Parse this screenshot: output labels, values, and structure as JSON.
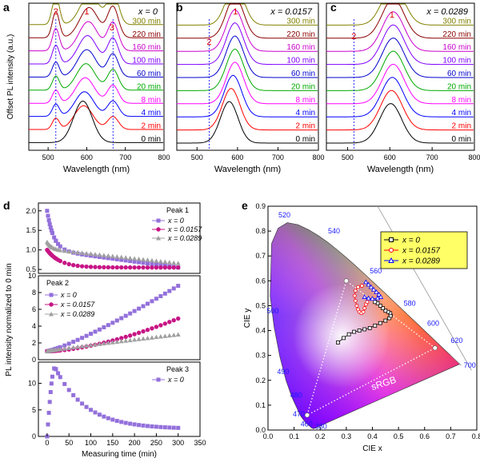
{
  "chart_data": [
    {
      "type": "line",
      "panel": "a",
      "title": "x = 0",
      "xlabel": "Wavelength (nm)",
      "ylabel": "Offset PL intensity (a.u.)",
      "xlim": [
        450,
        800
      ],
      "xticks": [
        500,
        600,
        700,
        800
      ],
      "time_labels": [
        "300 min",
        "220 min",
        "160 min",
        "100 min",
        "60 min",
        "20 min",
        "8 min",
        "4 min",
        "2 min",
        "0 min"
      ],
      "colors": [
        "#808000",
        "#8b0000",
        "#cc00cc",
        "#8000ff",
        "#0000cc",
        "#00aa00",
        "#ff00ff",
        "#0000ff",
        "#ff0000",
        "#000000"
      ],
      "peak_labels": [
        {
          "text": "2",
          "wavelength": 520
        },
        {
          "text": "1",
          "wavelength": 600
        },
        {
          "text": "3",
          "wavelength": 665
        }
      ],
      "dashed_lines": [
        520,
        668
      ]
    },
    {
      "type": "line",
      "panel": "b",
      "title": "x = 0.0157",
      "xlabel": "Wavelength (nm)",
      "xlim": [
        450,
        800
      ],
      "xticks": [
        500,
        600,
        700,
        800
      ],
      "time_labels": [
        "300 min",
        "220 min",
        "160 min",
        "100 min",
        "60 min",
        "20 min",
        "8 min",
        "4 min",
        "2 min",
        "0 min"
      ],
      "peak_labels": [
        {
          "text": "2",
          "wavelength": 530
        },
        {
          "text": "1",
          "wavelength": 595
        }
      ],
      "dashed_lines": [
        530
      ]
    },
    {
      "type": "line",
      "panel": "c",
      "title": "x = 0.0289",
      "xlabel": "Wavelength (nm)",
      "xlim": [
        450,
        800
      ],
      "xticks": [
        500,
        600,
        700,
        800
      ],
      "time_labels": [
        "300 min",
        "220 min",
        "160 min",
        "100 min",
        "60 min",
        "20 min",
        "8 min",
        "4 min",
        "2 min",
        "0 min"
      ],
      "peak_labels": [
        {
          "text": "2",
          "wavelength": 515
        },
        {
          "text": "1",
          "wavelength": 605
        }
      ],
      "dashed_lines": [
        515
      ]
    },
    {
      "type": "scatter",
      "panel": "d",
      "xlabel": "Measuring time (min)",
      "ylabel": "PL intensity normalized to 0 min",
      "xlim": [
        -20,
        350
      ],
      "xticks": [
        0,
        50,
        100,
        150,
        200,
        250,
        300,
        350
      ],
      "subplots": [
        {
          "name": "Peak 1",
          "ylim": [
            0.4,
            2.2
          ],
          "yticks": [
            0.5,
            1.0,
            1.5,
            2.0
          ],
          "series": [
            {
              "name": "x = 0",
              "a": 1.0,
              "b": 1.0,
              "tau": 15,
              "c": 0.0015,
              "color": "#9370db",
              "marker": "square"
            },
            {
              "name": "x = 0.0157",
              "a": 0.45,
              "b": 0.55,
              "tau": 30,
              "c": 0,
              "color": "#c71585",
              "marker": "circle"
            },
            {
              "name": "x = 0.0289",
              "a": 0.18,
              "b": 1.02,
              "tau": 10,
              "c": 0.0012,
              "color": "#a0a0a0",
              "marker": "triangle"
            }
          ]
        },
        {
          "name": "Peak 2",
          "ylim": [
            0,
            10
          ],
          "yticks": [
            0,
            2,
            4,
            6,
            8,
            10
          ],
          "series": [
            {
              "name": "x = 0",
              "start": 1.0,
              "end": 8.8,
              "curv": 1.2,
              "color": "#9370db",
              "marker": "square"
            },
            {
              "name": "x = 0.0157",
              "start": 1.0,
              "end": 4.9,
              "curv": 1.6,
              "color": "#c71585",
              "marker": "circle"
            },
            {
              "name": "x = 0.0289",
              "start": 1.0,
              "end": 3.0,
              "curv": 0.9,
              "color": "#a0a0a0",
              "marker": "triangle"
            }
          ]
        },
        {
          "name": "Peak 3",
          "ylim": [
            0,
            14
          ],
          "yticks": [
            0,
            5,
            10
          ],
          "series": [
            {
              "name": "x = 0",
              "peak_time": 18,
              "peak_value": 13,
              "end": 1.4,
              "color": "#9370db",
              "marker": "square"
            }
          ]
        }
      ]
    },
    {
      "type": "scatter",
      "panel": "e",
      "xlabel": "CIE x",
      "ylabel": "CIE y",
      "xlim": [
        0.0,
        0.8
      ],
      "ylim": [
        0.0,
        0.9
      ],
      "xticks": [
        0.0,
        0.1,
        0.2,
        0.3,
        0.4,
        0.5,
        0.6,
        0.7,
        0.8
      ],
      "yticks": [
        0.0,
        0.1,
        0.2,
        0.3,
        0.4,
        0.5,
        0.6,
        0.7,
        0.8,
        0.9
      ],
      "wavelength_labels": [
        "380",
        "460",
        "470",
        "480",
        "490",
        "500",
        "520",
        "540",
        "560",
        "580",
        "600",
        "620",
        "700"
      ],
      "triangle_label": "sRGB",
      "srgb": [
        [
          0.64,
          0.33
        ],
        [
          0.3,
          0.6
        ],
        [
          0.15,
          0.06
        ]
      ],
      "series": [
        {
          "name": "x = 0",
          "color": "#000000",
          "marker": "square",
          "points": [
            [
              0.268,
              0.352
            ],
            [
              0.29,
              0.37
            ],
            [
              0.31,
              0.385
            ],
            [
              0.33,
              0.395
            ],
            [
              0.35,
              0.4
            ],
            [
              0.37,
              0.405
            ],
            [
              0.39,
              0.41
            ],
            [
              0.41,
              0.42
            ],
            [
              0.43,
              0.43
            ],
            [
              0.45,
              0.44
            ],
            [
              0.465,
              0.45
            ],
            [
              0.47,
              0.46
            ],
            [
              0.468,
              0.47
            ],
            [
              0.46,
              0.475
            ],
            [
              0.45,
              0.48
            ],
            [
              0.44,
              0.49
            ],
            [
              0.43,
              0.5
            ],
            [
              0.42,
              0.51
            ],
            [
              0.41,
              0.515
            ]
          ]
        },
        {
          "name": "x = 0.0157",
          "color": "#ff0000",
          "marker": "circle",
          "points": [
            [
              0.36,
              0.58
            ],
            [
              0.345,
              0.575
            ],
            [
              0.335,
              0.56
            ],
            [
              0.332,
              0.54
            ],
            [
              0.335,
              0.52
            ],
            [
              0.34,
              0.5
            ],
            [
              0.345,
              0.485
            ],
            [
              0.35,
              0.475
            ],
            [
              0.358,
              0.47
            ],
            [
              0.365,
              0.475
            ],
            [
              0.37,
              0.49
            ],
            [
              0.375,
              0.505
            ],
            [
              0.38,
              0.515
            ]
          ]
        },
        {
          "name": "x = 0.0289",
          "color": "#0000ff",
          "marker": "triangle",
          "points": [
            [
              0.375,
              0.595
            ],
            [
              0.385,
              0.585
            ],
            [
              0.395,
              0.575
            ],
            [
              0.405,
              0.565
            ],
            [
              0.415,
              0.555
            ],
            [
              0.425,
              0.545
            ],
            [
              0.432,
              0.535
            ],
            [
              0.42,
              0.53
            ],
            [
              0.4,
              0.528
            ],
            [
              0.385,
              0.53
            ],
            [
              0.37,
              0.535
            ]
          ]
        }
      ]
    }
  ],
  "labels": {
    "a": "a",
    "b": "b",
    "c": "c",
    "d": "d",
    "e": "e",
    "peak1": "Peak 1",
    "peak2": "Peak 2",
    "peak3": "Peak 3"
  }
}
